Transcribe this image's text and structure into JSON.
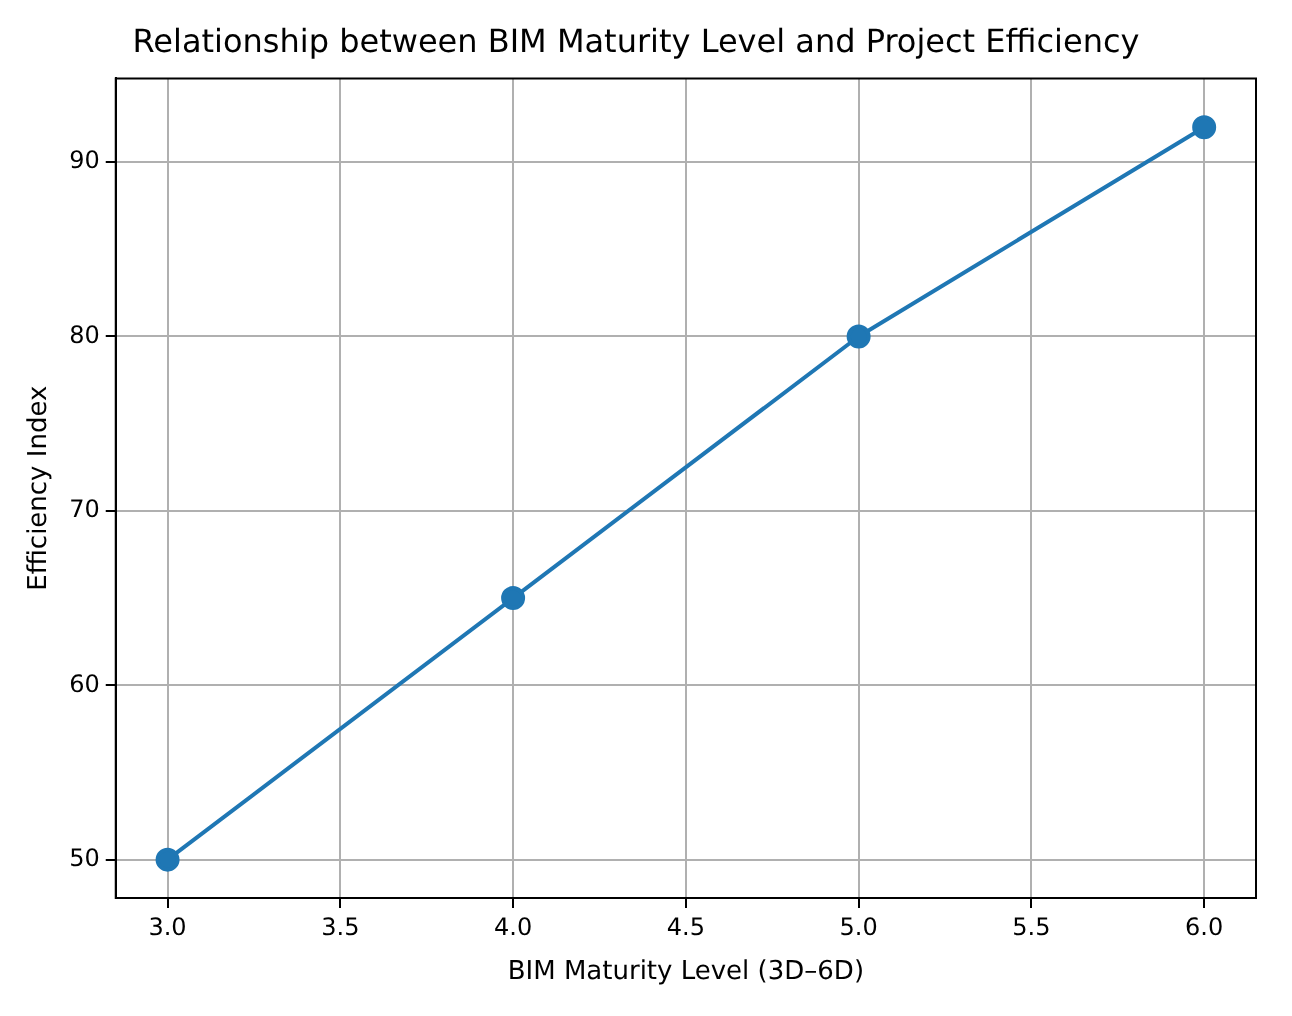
{
  "chart_data": {
    "type": "line",
    "title": "Relationship between BIM Maturity Level and Project Efficiency",
    "xlabel": "BIM Maturity Level (3D–6D)",
    "ylabel": "Efficiency Index",
    "x": [
      3,
      4,
      5,
      6
    ],
    "series": [
      {
        "color": "#1f77b4",
        "values": [
          50,
          65,
          80,
          92
        ]
      }
    ],
    "xlim": [
      2.85,
      6.15
    ],
    "xticks": [
      {
        "value": 3,
        "label": "3.0"
      },
      {
        "value": 3.5,
        "label": "3.5"
      },
      {
        "value": 4,
        "label": "4.0"
      },
      {
        "value": 4.5,
        "label": "4.5"
      },
      {
        "value": 5,
        "label": "5.0"
      },
      {
        "value": 5.5,
        "label": "5.5"
      },
      {
        "value": 6,
        "label": "6.0"
      }
    ],
    "ylim": [
      47.8,
      94.8
    ],
    "yticks": [
      50,
      60,
      70,
      80,
      90
    ],
    "grid": true,
    "marker": "circle",
    "line_style": "solid"
  }
}
